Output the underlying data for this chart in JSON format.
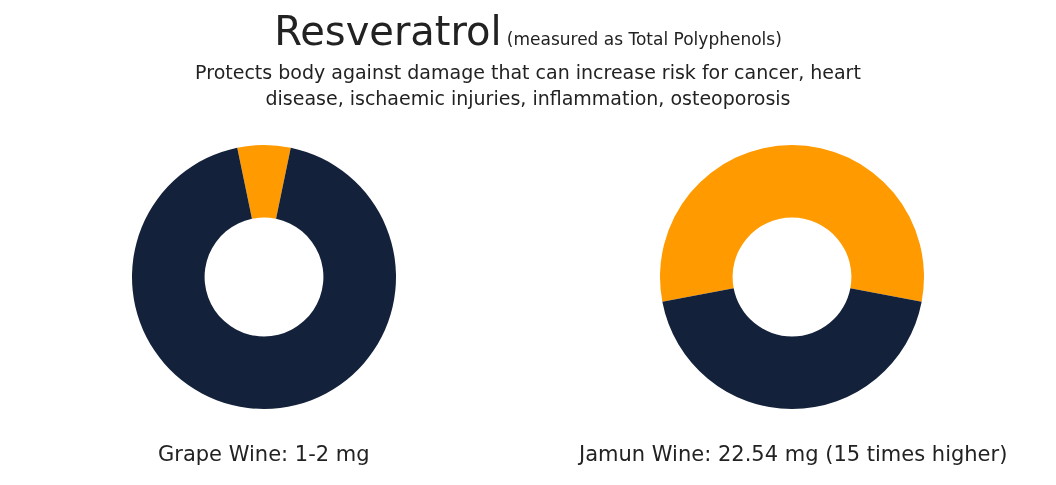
{
  "chart_data": [
    {
      "type": "donut",
      "title": "Resveratrol",
      "subtitle": "(measured as Total Polyphenols)",
      "annotations": [
        "Protects body against damage that can increase risk for cancer, heart disease, ischaemic injuries, inflammation,  osteoporosis"
      ],
      "categories": [
        null,
        null
      ],
      "values": [
        6.5,
        93.5
      ],
      "colors": [
        "#ff9a00",
        "#13213a"
      ],
      "xlabel": "Grape Wine: 1-2 mg"
    },
    {
      "type": "donut",
      "categories": [
        null,
        null
      ],
      "values": [
        56,
        44
      ],
      "colors": [
        "#ff9a00",
        "#13213a"
      ],
      "xlabel": "Jamun Wine: 22.54 mg (15 times higher)"
    }
  ]
}
